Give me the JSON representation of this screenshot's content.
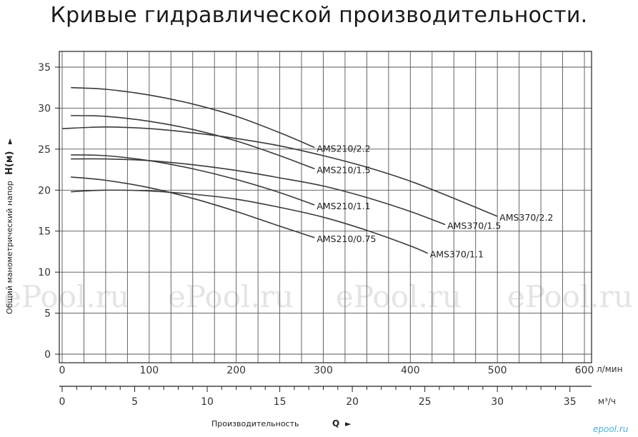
{
  "title": "Кривые гидравлической производительности.",
  "watermark_text": "ePool.ru",
  "corner_watermark": "epool.ru",
  "chart_data": {
    "type": "line",
    "title": "Кривые гидравлической производительности.",
    "ylabel_text": "Общий манометрический напор",
    "ylabel_symbol": "H(м)",
    "xlabel_text": "Производительность",
    "xlabel_symbol": "Q",
    "x_unit_primary": "л/мин",
    "x_unit_secondary": "м³/ч",
    "xlim": [
      0,
      600
    ],
    "ylim": [
      0,
      35
    ],
    "x_ticks": [
      0,
      100,
      200,
      300,
      400,
      500,
      600
    ],
    "y_ticks": [
      0,
      5,
      10,
      15,
      20,
      25,
      30,
      35
    ],
    "x2_ticks": [
      0,
      5,
      10,
      15,
      20,
      25,
      30,
      35
    ],
    "x2_conversion_lpm_per_m3h": 16.667,
    "grid": true,
    "series": [
      {
        "name": "AMS210/2.2",
        "x": [
          10,
          50,
          100,
          150,
          200,
          250,
          290
        ],
        "y": [
          32.5,
          32.3,
          31.6,
          30.5,
          29.0,
          27.0,
          25.2
        ]
      },
      {
        "name": "AMS210/1.5",
        "x": [
          10,
          50,
          100,
          150,
          200,
          250,
          290
        ],
        "y": [
          29.1,
          29.0,
          28.4,
          27.4,
          26.0,
          24.2,
          22.6
        ]
      },
      {
        "name": "AMS370/2.2",
        "x": [
          0,
          50,
          100,
          150,
          200,
          250,
          300,
          350,
          400,
          450,
          500
        ],
        "y": [
          27.5,
          27.7,
          27.5,
          27.0,
          26.3,
          25.4,
          24.2,
          22.8,
          21.1,
          19.0,
          16.8
        ]
      },
      {
        "name": "AMS210/1.1",
        "x": [
          10,
          50,
          100,
          150,
          200,
          250,
          290
        ],
        "y": [
          24.3,
          24.2,
          23.6,
          22.6,
          21.3,
          19.7,
          18.2
        ]
      },
      {
        "name": "AMS370/1.5",
        "x": [
          10,
          50,
          100,
          150,
          200,
          250,
          300,
          350,
          400,
          440
        ],
        "y": [
          23.8,
          23.8,
          23.6,
          23.1,
          22.4,
          21.5,
          20.5,
          19.1,
          17.4,
          15.8
        ]
      },
      {
        "name": "AMS370/1.1",
        "x": [
          10,
          50,
          100,
          150,
          200,
          250,
          300,
          350,
          400,
          420
        ],
        "y": [
          19.8,
          20.0,
          19.9,
          19.5,
          18.9,
          17.9,
          16.7,
          15.1,
          13.2,
          12.3
        ]
      },
      {
        "name": "AMS210/0.75",
        "x": [
          10,
          50,
          100,
          150,
          200,
          250,
          290
        ],
        "y": [
          21.6,
          21.2,
          20.3,
          19.0,
          17.4,
          15.6,
          14.2
        ]
      }
    ]
  }
}
